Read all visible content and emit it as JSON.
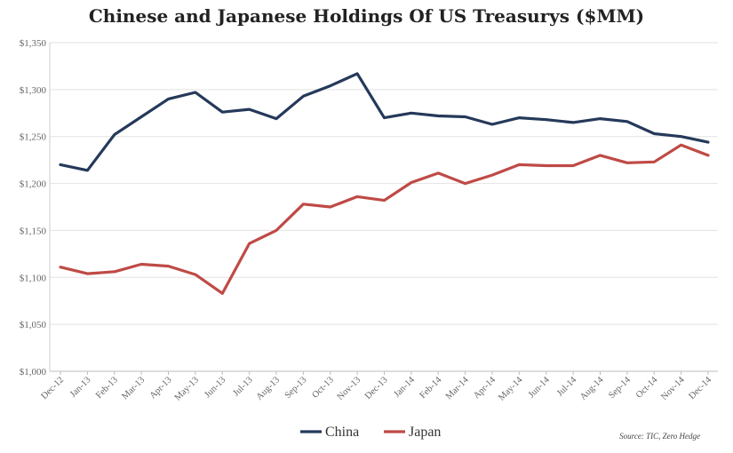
{
  "chart_data": {
    "type": "line",
    "title": "Chinese and Japanese Holdings Of US Treasurys ($MM)",
    "xlabel": "",
    "ylabel": "",
    "categories": [
      "Dec-12",
      "Jan-13",
      "Feb-13",
      "Mar-13",
      "Apr-13",
      "May-13",
      "Jun-13",
      "Jul-13",
      "Aug-13",
      "Sep-13",
      "Oct-13",
      "Nov-13",
      "Dec-13",
      "Jan-14",
      "Feb-14",
      "Mar-14",
      "Apr-14",
      "May-14",
      "Jun-14",
      "Jul-14",
      "Aug-14",
      "Sep-14",
      "Oct-14",
      "Nov-14",
      "Dec-14"
    ],
    "ylim": [
      1000,
      1350
    ],
    "yticks": [
      1000,
      1050,
      1100,
      1150,
      1200,
      1250,
      1300,
      1350
    ],
    "ytick_labels": [
      "$1,000",
      "$1,050",
      "$1,100",
      "$1,150",
      "$1,200",
      "$1,250",
      "$1,300",
      "$1,350"
    ],
    "grid": true,
    "legend_position": "bottom-center",
    "series": [
      {
        "name": "China",
        "color": "#25395a",
        "values": [
          1220,
          1214,
          1252,
          1271,
          1290,
          1297,
          1276,
          1279,
          1269,
          1293,
          1304,
          1317,
          1270,
          1275,
          1272,
          1271,
          1263,
          1270,
          1268,
          1265,
          1269,
          1266,
          1253,
          1250,
          1244
        ]
      },
      {
        "name": "Japan",
        "color": "#bf4a46",
        "values": [
          1111,
          1104,
          1106,
          1114,
          1112,
          1103,
          1083,
          1136,
          1150,
          1178,
          1175,
          1186,
          1182,
          1201,
          1211,
          1200,
          1209,
          1220,
          1219,
          1219,
          1230,
          1222,
          1223,
          1241,
          1230
        ]
      }
    ],
    "source": "Source: TIC, Zero Hedge"
  }
}
